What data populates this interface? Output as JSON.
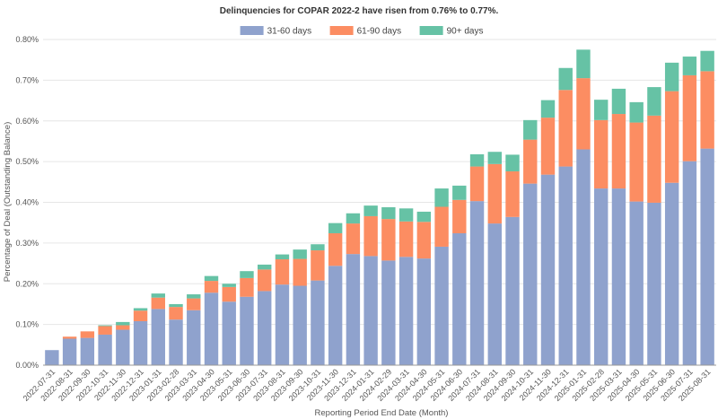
{
  "chart_data": {
    "type": "bar",
    "stacked": true,
    "title": "Delinquencies for COPAR 2022-2 have risen from 0.76% to 0.77%.",
    "xlabel": "Reporting Period End Date (Month)",
    "ylabel": "Percentage of Deal (Outstanding Balance)",
    "ylim": [
      0,
      0.8
    ],
    "yticks": [
      "0.00%",
      "0.10%",
      "0.20%",
      "0.30%",
      "0.40%",
      "0.50%",
      "0.60%",
      "0.70%",
      "0.80%"
    ],
    "grid": true,
    "legend_position": "top-center",
    "categories": [
      "2022-07-31",
      "2022-08-31",
      "2022-09-30",
      "2022-10-31",
      "2022-11-30",
      "2022-12-31",
      "2023-01-31",
      "2023-02-28",
      "2023-03-31",
      "2023-04-30",
      "2023-05-31",
      "2023-06-30",
      "2023-07-31",
      "2023-08-31",
      "2023-09-30",
      "2023-10-31",
      "2023-11-30",
      "2023-12-31",
      "2024-01-31",
      "2024-02-29",
      "2024-03-31",
      "2024-04-30",
      "2024-05-31",
      "2024-06-30",
      "2024-07-31",
      "2024-08-31",
      "2024-09-30",
      "2024-10-31",
      "2024-11-30",
      "2024-12-31",
      "2025-01-31",
      "2025-02-28",
      "2025-03-31",
      "2025-04-30",
      "2025-05-31",
      "2025-06-30",
      "2025-07-31",
      "2025-08-31"
    ],
    "series": [
      {
        "name": "31-60 days",
        "color": "#8fa2cd",
        "values": [
          0.037,
          0.065,
          0.067,
          0.075,
          0.087,
          0.108,
          0.138,
          0.112,
          0.135,
          0.178,
          0.156,
          0.168,
          0.182,
          0.198,
          0.195,
          0.208,
          0.244,
          0.273,
          0.268,
          0.257,
          0.266,
          0.262,
          0.291,
          0.324,
          0.403,
          0.348,
          0.364,
          0.446,
          0.468,
          0.488,
          0.53,
          0.434,
          0.434,
          0.402,
          0.399,
          0.448,
          0.501,
          0.532
        ]
      },
      {
        "name": "61-90 days",
        "color": "#fc8d62",
        "values": [
          0.0,
          0.005,
          0.016,
          0.021,
          0.011,
          0.026,
          0.028,
          0.031,
          0.029,
          0.029,
          0.036,
          0.046,
          0.053,
          0.062,
          0.066,
          0.074,
          0.08,
          0.075,
          0.098,
          0.102,
          0.087,
          0.09,
          0.098,
          0.082,
          0.085,
          0.146,
          0.112,
          0.108,
          0.14,
          0.188,
          0.175,
          0.168,
          0.183,
          0.194,
          0.214,
          0.225,
          0.211,
          0.19
        ]
      },
      {
        "name": "90+ days",
        "color": "#66c2a5",
        "values": [
          0.0,
          0.0,
          0.0,
          0.002,
          0.008,
          0.006,
          0.01,
          0.007,
          0.01,
          0.012,
          0.008,
          0.017,
          0.012,
          0.012,
          0.023,
          0.015,
          0.025,
          0.025,
          0.026,
          0.029,
          0.032,
          0.025,
          0.045,
          0.035,
          0.03,
          0.03,
          0.041,
          0.048,
          0.043,
          0.054,
          0.07,
          0.05,
          0.062,
          0.05,
          0.07,
          0.07,
          0.046,
          0.05
        ]
      }
    ]
  }
}
